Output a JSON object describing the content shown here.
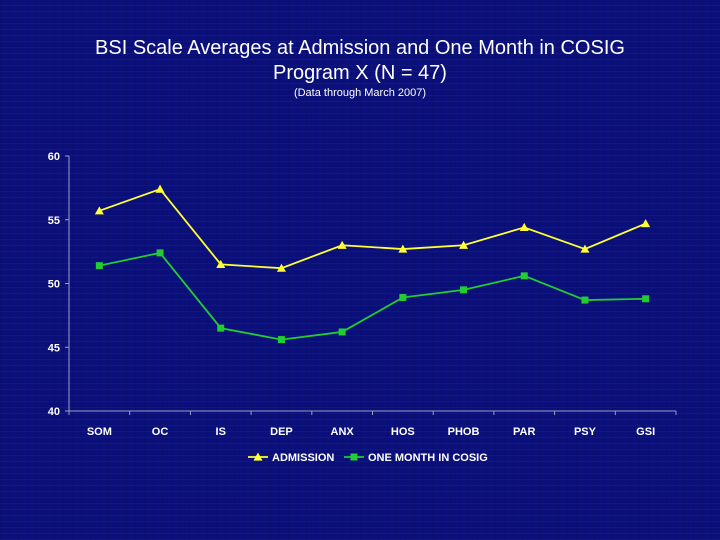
{
  "title_line1": "BSI Scale Averages at Admission and One Month in COSIG",
  "title_line2": "Program X (N = 47)",
  "subtitle": "(Data through March 2007)",
  "chart_data": {
    "type": "line",
    "categories": [
      "SOM",
      "OC",
      "IS",
      "DEP",
      "ANX",
      "HOS",
      "PHOB",
      "PAR",
      "PSY",
      "GSI"
    ],
    "series": [
      {
        "name": "ADMISSION",
        "color": "#ffff33",
        "marker": "triangle",
        "values": [
          55.7,
          57.4,
          51.5,
          51.2,
          53.0,
          52.7,
          53.0,
          54.4,
          52.7,
          54.7
        ]
      },
      {
        "name": "ONE MONTH IN COSIG",
        "color": "#22cc33",
        "marker": "square",
        "values": [
          51.4,
          52.4,
          46.5,
          45.6,
          46.2,
          48.9,
          49.5,
          50.6,
          48.7,
          48.8
        ]
      }
    ],
    "ylim": [
      40,
      60
    ],
    "yticks": [
      40,
      45,
      50,
      55,
      60
    ],
    "grid": false,
    "legend": "bottom"
  }
}
